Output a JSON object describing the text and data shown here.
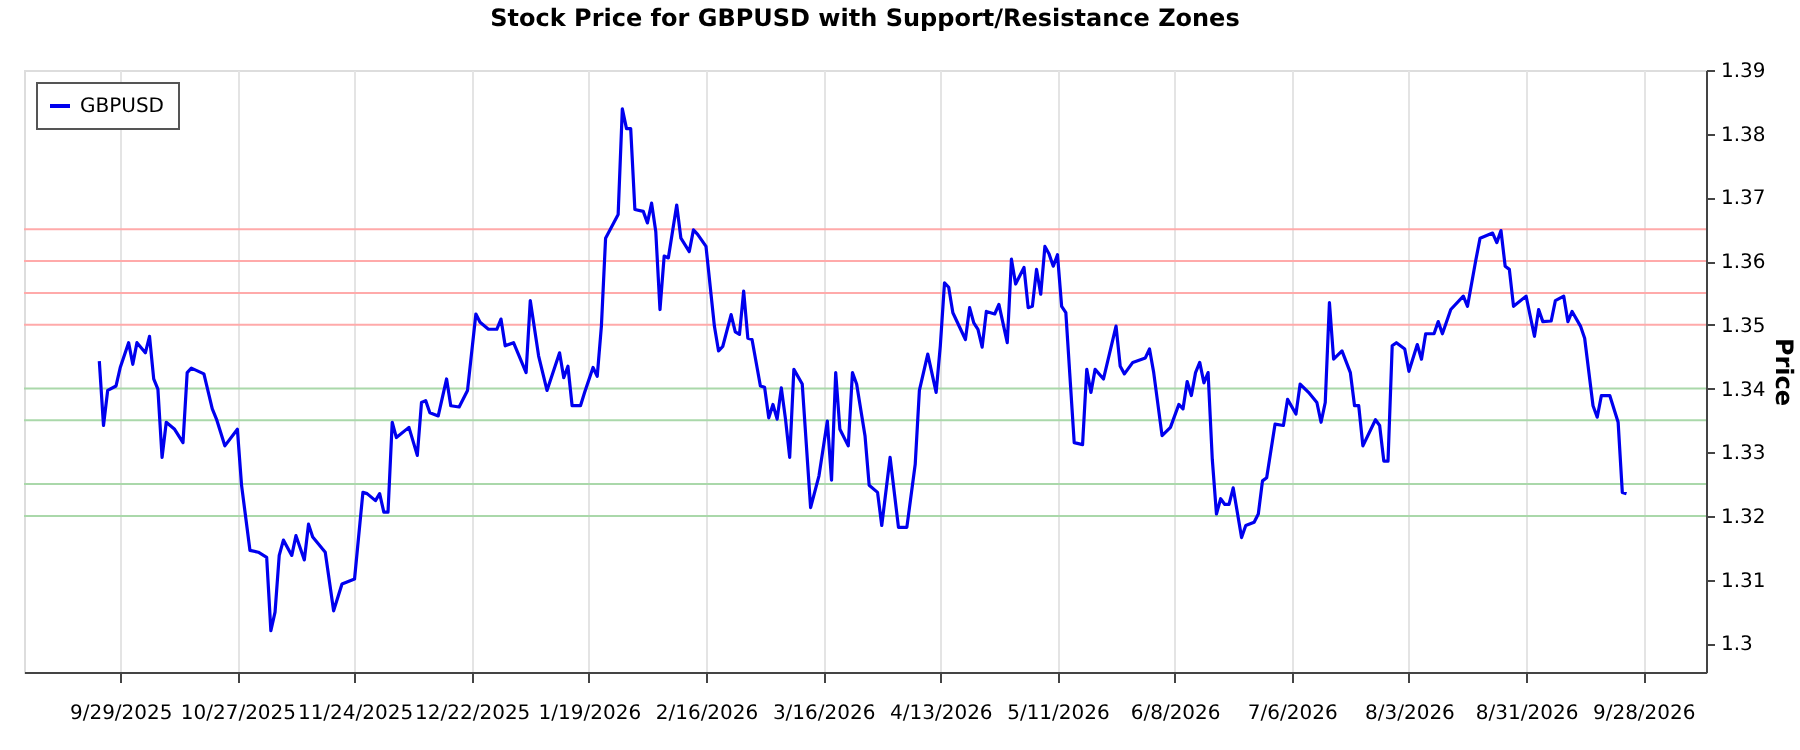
{
  "chart_data": {
    "type": "line",
    "title": "Stock Price for GBPUSD with Support/Resistance Zones",
    "ylabel": "Price",
    "x": [
      "2025-09-24",
      "2025-09-25",
      "2025-09-26",
      "2025-09-28",
      "2025-09-29",
      "2025-10-01",
      "2025-10-02",
      "2025-10-03",
      "2025-10-05",
      "2025-10-06",
      "2025-10-07",
      "2025-10-08",
      "2025-10-09",
      "2025-10-10",
      "2025-10-12",
      "2025-10-14",
      "2025-10-15",
      "2025-10-16",
      "2025-10-19",
      "2025-10-21",
      "2025-10-22",
      "2025-10-24",
      "2025-10-27",
      "2025-10-28",
      "2025-10-30",
      "2025-11-01",
      "2025-11-03",
      "2025-11-04",
      "2025-11-05",
      "2025-11-06",
      "2025-11-07",
      "2025-11-09",
      "2025-11-10",
      "2025-11-12",
      "2025-11-13",
      "2025-11-14",
      "2025-11-17",
      "2025-11-19",
      "2025-11-21",
      "2025-11-24",
      "2025-11-26",
      "2025-11-27",
      "2025-11-29",
      "2025-11-30",
      "2025-12-01",
      "2025-12-02",
      "2025-12-03",
      "2025-12-04",
      "2025-12-07",
      "2025-12-09",
      "2025-12-10",
      "2025-12-11",
      "2025-12-12",
      "2025-12-14",
      "2025-12-16",
      "2025-12-17",
      "2025-12-19",
      "2025-12-21",
      "2025-12-23",
      "2025-12-24",
      "2025-12-26",
      "2025-12-28",
      "2025-12-29",
      "2025-12-30",
      "2026-01-01",
      "2026-01-04",
      "2026-01-05",
      "2026-01-07",
      "2026-01-09",
      "2026-01-12",
      "2026-01-13",
      "2026-01-14",
      "2026-01-15",
      "2026-01-17",
      "2026-01-18",
      "2026-01-20",
      "2026-01-21",
      "2026-01-22",
      "2026-01-23",
      "2026-01-26",
      "2026-01-27",
      "2026-01-28",
      "2026-01-29",
      "2026-01-30",
      "2026-02-01",
      "2026-02-02",
      "2026-02-03",
      "2026-02-04",
      "2026-02-05",
      "2026-02-06",
      "2026-02-07",
      "2026-02-09",
      "2026-02-10",
      "2026-02-12",
      "2026-02-13",
      "2026-02-14",
      "2026-02-16",
      "2026-02-18",
      "2026-02-19",
      "2026-02-20",
      "2026-02-22",
      "2026-02-23",
      "2026-02-24",
      "2026-02-25",
      "2026-02-26",
      "2026-02-27",
      "2026-03-01",
      "2026-03-02",
      "2026-03-03",
      "2026-03-04",
      "2026-03-05",
      "2026-03-06",
      "2026-03-07",
      "2026-03-08",
      "2026-03-09",
      "2026-03-11",
      "2026-03-13",
      "2026-03-15",
      "2026-03-17",
      "2026-03-18",
      "2026-03-19",
      "2026-03-20",
      "2026-03-22",
      "2026-03-23",
      "2026-03-24",
      "2026-03-26",
      "2026-03-27",
      "2026-03-29",
      "2026-03-30",
      "2026-04-01",
      "2026-04-03",
      "2026-04-05",
      "2026-04-07",
      "2026-04-08",
      "2026-04-10",
      "2026-04-12",
      "2026-04-13",
      "2026-04-14",
      "2026-04-15",
      "2026-04-16",
      "2026-04-19",
      "2026-04-20",
      "2026-04-21",
      "2026-04-22",
      "2026-04-23",
      "2026-04-24",
      "2026-04-26",
      "2026-04-27",
      "2026-04-29",
      "2026-04-30",
      "2026-05-01",
      "2026-05-03",
      "2026-05-04",
      "2026-05-05",
      "2026-05-06",
      "2026-05-07",
      "2026-05-08",
      "2026-05-09",
      "2026-05-10",
      "2026-05-11",
      "2026-05-12",
      "2026-05-13",
      "2026-05-15",
      "2026-05-17",
      "2026-05-18",
      "2026-05-19",
      "2026-05-20",
      "2026-05-22",
      "2026-05-25",
      "2026-05-26",
      "2026-05-27",
      "2026-05-29",
      "2026-06-01",
      "2026-06-02",
      "2026-06-03",
      "2026-06-05",
      "2026-06-07",
      "2026-06-09",
      "2026-06-10",
      "2026-06-11",
      "2026-06-12",
      "2026-06-13",
      "2026-06-14",
      "2026-06-15",
      "2026-06-16",
      "2026-06-17",
      "2026-06-18",
      "2026-06-19",
      "2026-06-20",
      "2026-06-21",
      "2026-06-22",
      "2026-06-24",
      "2026-06-25",
      "2026-06-27",
      "2026-06-28",
      "2026-06-29",
      "2026-06-30",
      "2026-07-02",
      "2026-07-04",
      "2026-07-05",
      "2026-07-07",
      "2026-07-08",
      "2026-07-10",
      "2026-07-12",
      "2026-07-13",
      "2026-07-14",
      "2026-07-15",
      "2026-07-16",
      "2026-07-18",
      "2026-07-20",
      "2026-07-21",
      "2026-07-22",
      "2026-07-23",
      "2026-07-26",
      "2026-07-27",
      "2026-07-28",
      "2026-07-29",
      "2026-07-30",
      "2026-07-31",
      "2026-08-02",
      "2026-08-03",
      "2026-08-05",
      "2026-08-06",
      "2026-08-07",
      "2026-08-09",
      "2026-08-10",
      "2026-08-11",
      "2026-08-13",
      "2026-08-16",
      "2026-08-17",
      "2026-08-19",
      "2026-08-20",
      "2026-08-23",
      "2026-08-24",
      "2026-08-25",
      "2026-08-26",
      "2026-08-27",
      "2026-08-28",
      "2026-08-31",
      "2026-09-02",
      "2026-09-03",
      "2026-09-04",
      "2026-09-06",
      "2026-09-07",
      "2026-09-09",
      "2026-09-10",
      "2026-09-11",
      "2026-09-13",
      "2026-09-14",
      "2026-09-16",
      "2026-09-17",
      "2026-09-18",
      "2026-09-20",
      "2026-09-22",
      "2026-09-23",
      "2026-09-24"
    ],
    "series": [
      {
        "name": "GBPUSD",
        "color": "#0000ee",
        "values": [
          1.3443,
          1.3342,
          1.3397,
          1.3404,
          1.3433,
          1.3472,
          1.3438,
          1.3472,
          1.3456,
          1.3482,
          1.3415,
          1.3399,
          1.3292,
          1.3347,
          1.3336,
          1.3315,
          1.3425,
          1.3432,
          1.3423,
          1.3368,
          1.3352,
          1.331,
          1.3336,
          1.3248,
          1.3146,
          1.3143,
          1.3135,
          1.302,
          1.3049,
          1.3138,
          1.3162,
          1.3138,
          1.3169,
          1.3131,
          1.3187,
          1.3167,
          1.3143,
          1.3051,
          1.3093,
          1.3101,
          1.3237,
          1.3235,
          1.3224,
          1.3235,
          1.3206,
          1.3206,
          1.3347,
          1.3323,
          1.3339,
          1.3295,
          1.3378,
          1.3381,
          1.3362,
          1.3357,
          1.3415,
          1.3373,
          1.3371,
          1.3397,
          1.3517,
          1.3504,
          1.3493,
          1.3493,
          1.3509,
          1.3467,
          1.3472,
          1.3425,
          1.3538,
          1.3451,
          1.3397,
          1.3456,
          1.3417,
          1.3435,
          1.3373,
          1.3373,
          1.3394,
          1.3433,
          1.3419,
          1.3498,
          1.3636,
          1.3673,
          1.3839,
          1.3808,
          1.3808,
          1.3681,
          1.3678,
          1.366,
          1.3691,
          1.3646,
          1.3524,
          1.3608,
          1.3605,
          1.3688,
          1.3636,
          1.3615,
          1.3649,
          1.3642,
          1.3623,
          1.3498,
          1.3459,
          1.3466,
          1.3516,
          1.3489,
          1.3485,
          1.3553,
          1.3479,
          1.3477,
          1.3404,
          1.3402,
          1.3354,
          1.3375,
          1.3352,
          1.3401,
          1.3352,
          1.3292,
          1.343,
          1.3407,
          1.3213,
          1.3263,
          1.3349,
          1.3256,
          1.3425,
          1.3336,
          1.331,
          1.3425,
          1.3407,
          1.3326,
          1.3248,
          1.3237,
          1.3185,
          1.3292,
          1.3182,
          1.3182,
          1.3281,
          1.3397,
          1.3454,
          1.3394,
          1.3467,
          1.3566,
          1.3559,
          1.3519,
          1.3477,
          1.3527,
          1.3503,
          1.3493,
          1.3465,
          1.3521,
          1.3517,
          1.3532,
          1.3472,
          1.3603,
          1.3564,
          1.359,
          1.3527,
          1.3529,
          1.3587,
          1.3548,
          1.3623,
          1.3611,
          1.3592,
          1.361,
          1.3529,
          1.3519,
          1.3315,
          1.3312,
          1.343,
          1.3394,
          1.343,
          1.3415,
          1.3498,
          1.3435,
          1.3423,
          1.3441,
          1.3448,
          1.3462,
          1.3425,
          1.3326,
          1.3339,
          1.3375,
          1.3368,
          1.3411,
          1.3389,
          1.3425,
          1.3441,
          1.3409,
          1.3425,
          1.3289,
          1.3203,
          1.3227,
          1.3218,
          1.3218,
          1.3244,
          1.3166,
          1.3185,
          1.319,
          1.3203,
          1.3255,
          1.326,
          1.3344,
          1.3342,
          1.3383,
          1.336,
          1.3407,
          1.3394,
          1.3378,
          1.3347,
          1.3378,
          1.3535,
          1.3446,
          1.3459,
          1.3425,
          1.3373,
          1.3373,
          1.331,
          1.3351,
          1.3342,
          1.3286,
          1.3286,
          1.3467,
          1.3472,
          1.3462,
          1.3427,
          1.3469,
          1.3446,
          1.3486,
          1.3486,
          1.3505,
          1.3486,
          1.3524,
          1.3545,
          1.3529,
          1.3602,
          1.3636,
          1.3644,
          1.3629,
          1.3648,
          1.3592,
          1.3587,
          1.3529,
          1.3545,
          1.3482,
          1.3524,
          1.3505,
          1.3506,
          1.3538,
          1.3545,
          1.3505,
          1.3521,
          1.3498,
          1.3479,
          1.3373,
          1.3355,
          1.3389,
          1.3389,
          1.3347,
          1.3237,
          1.3235
        ]
      }
    ],
    "xlim": [
      "2025-09-06",
      "2026-10-13"
    ],
    "xticks": [
      {
        "value": "2025-09-29",
        "label": "9/29/2025"
      },
      {
        "value": "2025-10-27",
        "label": "10/27/2025"
      },
      {
        "value": "2025-11-24",
        "label": "11/24/2025"
      },
      {
        "value": "2025-12-22",
        "label": "12/22/2025"
      },
      {
        "value": "2026-01-19",
        "label": "1/19/2026"
      },
      {
        "value": "2026-02-16",
        "label": "2/16/2026"
      },
      {
        "value": "2026-03-16",
        "label": "3/16/2026"
      },
      {
        "value": "2026-04-13",
        "label": "4/13/2026"
      },
      {
        "value": "2026-05-11",
        "label": "5/11/2026"
      },
      {
        "value": "2026-06-08",
        "label": "6/8/2026"
      },
      {
        "value": "2026-07-06",
        "label": "7/6/2026"
      },
      {
        "value": "2026-08-03",
        "label": "8/3/2026"
      },
      {
        "value": "2026-08-31",
        "label": "8/31/2026"
      },
      {
        "value": "2026-09-28",
        "label": "9/28/2026"
      }
    ],
    "ylim": [
      1.2955,
      1.39
    ],
    "yticks": [
      1.3,
      1.31,
      1.32,
      1.33,
      1.34,
      1.35,
      1.36,
      1.37,
      1.38,
      1.39
    ],
    "grid": "x",
    "legend": "top left",
    "line_style": "solid",
    "ref_lines": [
      {
        "axis": "y",
        "value": 1.35,
        "color": "#ffaaaa"
      },
      {
        "axis": "y",
        "value": 1.355,
        "color": "#ffaaaa"
      },
      {
        "axis": "y",
        "value": 1.36,
        "color": "#ffaaaa"
      },
      {
        "axis": "y",
        "value": 1.365,
        "color": "#ffaaaa"
      },
      {
        "axis": "y",
        "value": 1.34,
        "color": "#aad8aa"
      },
      {
        "axis": "y",
        "value": 1.335,
        "color": "#aad8aa"
      },
      {
        "axis": "y",
        "value": 1.325,
        "color": "#aad8aa"
      },
      {
        "axis": "y",
        "value": 1.32,
        "color": "#aad8aa"
      }
    ]
  }
}
